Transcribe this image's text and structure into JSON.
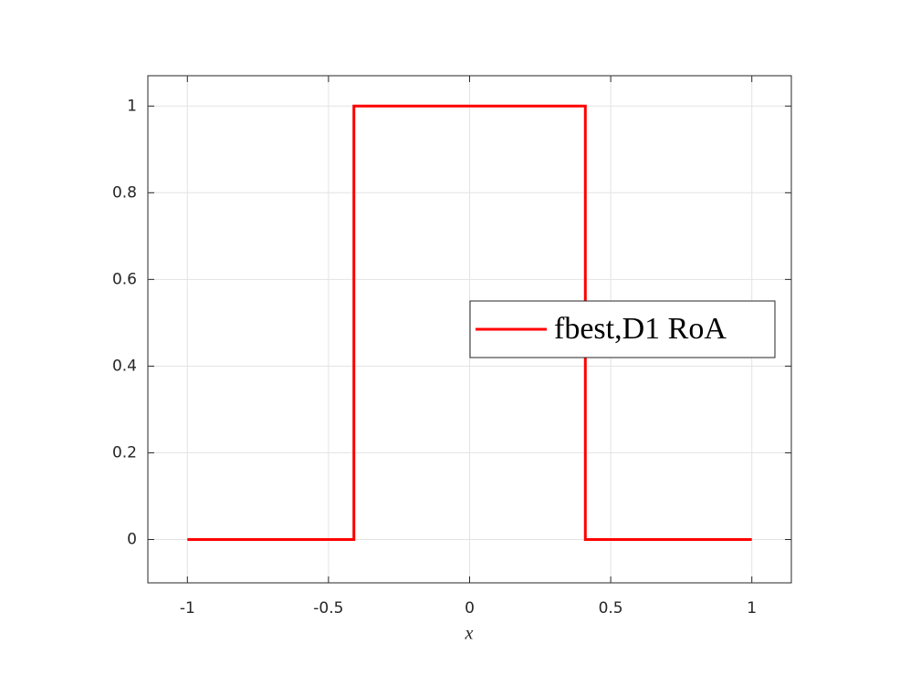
{
  "chart_data": {
    "type": "line",
    "x": [
      -1,
      -0.41,
      -0.41,
      0.41,
      0.41,
      1
    ],
    "series": [
      {
        "name": "fbest,D1 RoA",
        "color": "#ff0000",
        "values": [
          0,
          0,
          1,
          1,
          0,
          0
        ]
      }
    ],
    "xlabel": "x",
    "xlim": [
      -1.14,
      1.14
    ],
    "xticks": [
      -1,
      -0.5,
      0,
      0.5,
      1
    ],
    "ylim": [
      -0.1,
      1.07
    ],
    "yticks": [
      0,
      0.2,
      0.4,
      0.6,
      0.8,
      1
    ],
    "grid": true,
    "legend": "east"
  }
}
